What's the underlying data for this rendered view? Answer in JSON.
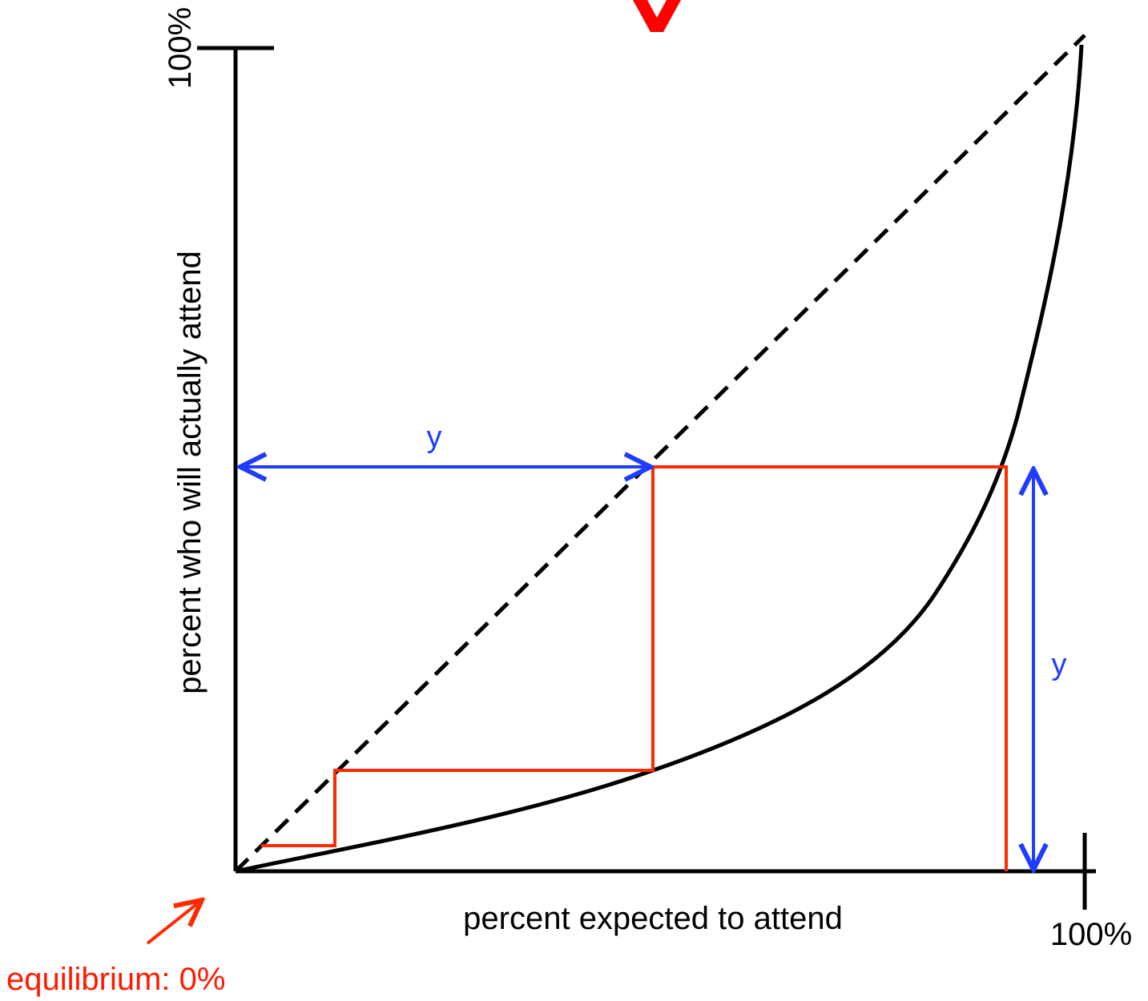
{
  "labels": {
    "y_axis_top": "100%",
    "x_axis_end": "100%",
    "x_axis_label": "percent expected to attend",
    "y_axis_label": "percent  who will actually attend",
    "arrow_horizontal_label": "y",
    "arrow_vertical_label": "y",
    "equilibrium_label": "equilibrium: 0%"
  },
  "colors": {
    "curve": "#000000",
    "diagonal": "#000000",
    "cobweb": "#ff2a00",
    "blue_arrows": "#1f3cff",
    "equilibrium_text": "#ff1a00"
  }
}
